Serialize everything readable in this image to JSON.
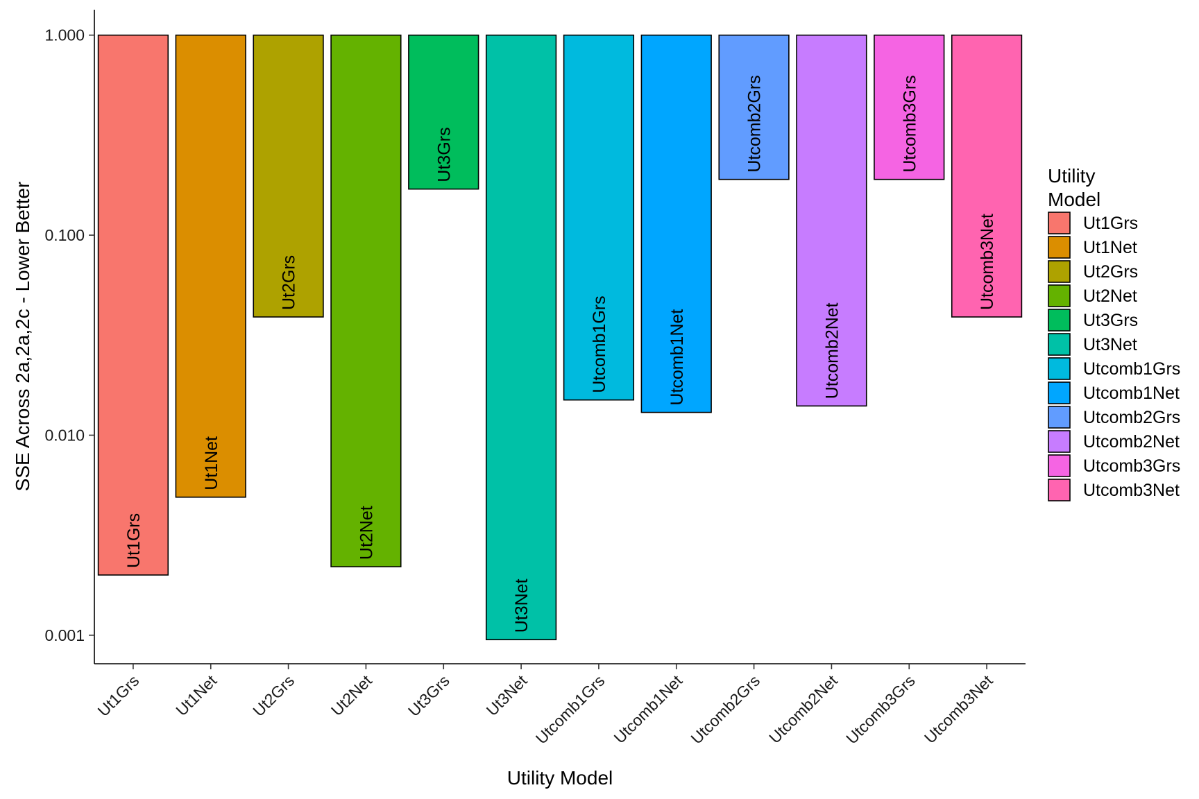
{
  "chart_data": {
    "type": "bar",
    "xlabel": "Utility Model",
    "ylabel": "SSE Across 2a,2a,2c - Lower Better",
    "y_scale": "log10",
    "ylim": [
      0.00072,
      1.34
    ],
    "y_ticks": [
      0.001,
      0.01,
      0.1,
      1.0
    ],
    "y_tick_labels": [
      "0.001",
      "0.010",
      "0.100",
      "1.000"
    ],
    "bar_baseline": 1.0,
    "categories": [
      "Ut1Grs",
      "Ut1Net",
      "Ut2Grs",
      "Ut2Net",
      "Ut3Grs",
      "Ut3Net",
      "Utcomb1Grs",
      "Utcomb1Net",
      "Utcomb2Grs",
      "Utcomb2Net",
      "Utcomb3Grs",
      "Utcomb3Net"
    ],
    "values": [
      0.002,
      0.0049,
      0.039,
      0.0022,
      0.17,
      0.00095,
      0.015,
      0.013,
      0.19,
      0.014,
      0.19,
      0.039
    ],
    "colors": [
      "#F8766D",
      "#DB8E00",
      "#AEA200",
      "#64B200",
      "#00BD5C",
      "#00C1A7",
      "#00BADE",
      "#00A6FF",
      "#B385FF",
      "#EF67EB",
      "#FF63B6"
    ],
    "bar_colors": [
      "#F8766D",
      "#DB8E00",
      "#AEA200",
      "#64B200",
      "#00BD5C",
      "#00C1A7",
      "#00BADE",
      "#00A6FF",
      "#619CFF",
      "#C77CFF",
      "#F564E3",
      "#FF64B0"
    ],
    "grid": false,
    "legend": {
      "title_lines": [
        "Utility",
        "Model"
      ],
      "position": "right",
      "entries": [
        "Ut1Grs",
        "Ut1Net",
        "Ut2Grs",
        "Ut2Net",
        "Ut3Grs",
        "Ut3Net",
        "Utcomb1Grs",
        "Utcomb1Net",
        "Utcomb2Grs",
        "Utcomb2Net",
        "Utcomb3Grs",
        "Utcomb3Net"
      ]
    }
  }
}
